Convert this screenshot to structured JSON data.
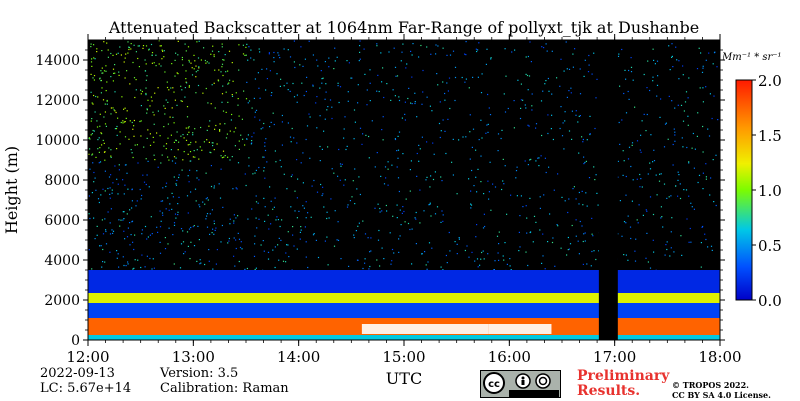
{
  "chart_data": {
    "type": "heatmap",
    "title": "Attenuated Backscatter at 1064nm Far-Range of pollyxt_tjk at Dushanbe",
    "xlabel": "UTC",
    "ylabel": "Height (m)",
    "x_ticks": [
      "12:00",
      "13:00",
      "14:00",
      "15:00",
      "16:00",
      "17:00",
      "18:00"
    ],
    "xlim": [
      12,
      18
    ],
    "y_ticks": [
      0,
      2000,
      4000,
      6000,
      8000,
      10000,
      12000,
      14000
    ],
    "ylim": [
      0,
      15000
    ],
    "colorbar": {
      "label": "Mm⁻¹ * sr⁻¹",
      "range": [
        0.0,
        2.0
      ],
      "ticks": [
        "0.0",
        "0.5",
        "1.0",
        "1.5",
        "2.0"
      ]
    },
    "no_data_window": [
      16.85,
      17.03
    ],
    "layers": [
      {
        "bottom": 0,
        "top": 250,
        "level": 0.65
      },
      {
        "bottom": 250,
        "top": 1100,
        "level": 1.75
      },
      {
        "bottom": 1100,
        "top": 1850,
        "level": 0.25
      },
      {
        "bottom": 1850,
        "top": 2350,
        "level": 1.2
      },
      {
        "bottom": 2350,
        "top": 3500,
        "level": 0.15
      }
    ]
  },
  "footer": {
    "date": "2022-09-13",
    "lc": "LC: 5.67e+14",
    "version": "Version: 3.5",
    "calibration": "Calibration: Raman",
    "preliminary_line1": "Preliminary",
    "preliminary_line2": "Results.",
    "copyright_line1": "© TROPOS 2022.",
    "copyright_line2": "CC BY SA 4.0 License.",
    "license_badge": "cc-by-sa-badge"
  }
}
